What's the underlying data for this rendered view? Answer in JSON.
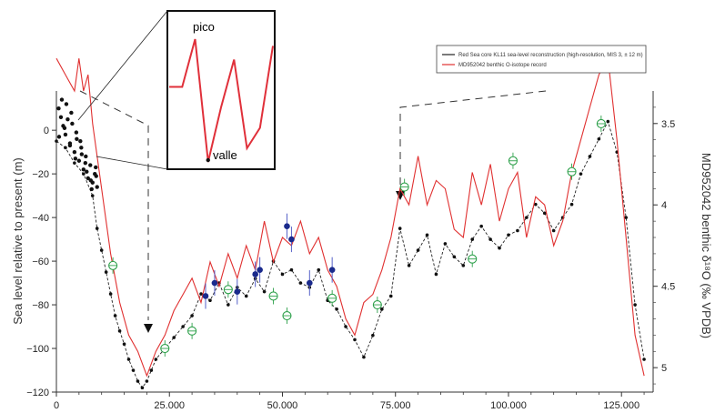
{
  "chart_data": {
    "type": "line",
    "xlabel": "",
    "ylabel_left": "Sea level relative to present (m)",
    "ylabel_right": "MD952042 benthic δ¹⁸O (‰ VPDB)",
    "xlim": [
      0,
      132000
    ],
    "ylim_left": [
      -120,
      18
    ],
    "ylim_right": [
      3.3,
      5.15
    ],
    "x_ticks": [
      "0",
      "25.000",
      "50.000",
      "75.000",
      "100.000",
      "125.000"
    ],
    "x_tick_values": [
      0,
      25000,
      50000,
      75000,
      100000,
      125000
    ],
    "y_ticks_left": [
      "0",
      "−20",
      "−40",
      "−60",
      "−80",
      "−100",
      "−120"
    ],
    "y_tick_values_left": [
      0,
      -20,
      -40,
      -60,
      -80,
      -100,
      -120
    ],
    "y_ticks_right": [
      "3.5",
      "4",
      "4.5",
      "5"
    ],
    "y_tick_values_right": [
      3.5,
      4,
      4.5,
      5
    ],
    "legend_placement": "top-right",
    "series": [
      {
        "name": "Red Sea core KL11 sea-level reconstruction (high-resolution, MIS 3, ± 12 m)",
        "color": "#222222",
        "axis": "left",
        "x": [
          0,
          2000,
          4000,
          6000,
          8000,
          9000,
          10000,
          11000,
          12000,
          13000,
          14000,
          15000,
          16000,
          17000,
          18000,
          19000,
          20000,
          21000,
          22000,
          24000,
          26000,
          28000,
          30000,
          32000,
          34000,
          36000,
          38000,
          40000,
          42000,
          44000,
          46000,
          48000,
          50000,
          52000,
          54000,
          56000,
          58000,
          60000,
          62000,
          64000,
          66000,
          68000,
          70000,
          72000,
          74000,
          76000,
          78000,
          80000,
          82000,
          84000,
          86000,
          88000,
          90000,
          92000,
          94000,
          96000,
          98000,
          100000,
          102000,
          104000,
          106000,
          108000,
          110000,
          112000,
          114000,
          116000,
          118000,
          120000,
          122000,
          124000,
          126000,
          128000,
          130000
        ],
        "y": [
          -5,
          -8,
          -15,
          -20,
          -30,
          -45,
          -55,
          -65,
          -75,
          -85,
          -92,
          -98,
          -105,
          -110,
          -115,
          -118,
          -115,
          -110,
          -105,
          -100,
          -95,
          -90,
          -85,
          -75,
          -78,
          -70,
          -80,
          -72,
          -76,
          -68,
          -74,
          -60,
          -66,
          -64,
          -70,
          -72,
          -64,
          -78,
          -82,
          -90,
          -96,
          -104,
          -94,
          -82,
          -76,
          -45,
          -62,
          -55,
          -48,
          -66,
          -52,
          -58,
          -62,
          -50,
          -44,
          -50,
          -54,
          -48,
          -46,
          -40,
          -34,
          -38,
          -46,
          -40,
          -34,
          -20,
          -12,
          -4,
          4,
          -10,
          -40,
          -80,
          -105
        ]
      },
      {
        "name": "MD952042 benthic O-isotope record",
        "color": "#e03030",
        "axis": "right",
        "x": [
          0,
          2000,
          4000,
          5000,
          6000,
          7000,
          8000,
          10000,
          12000,
          14000,
          16000,
          18000,
          20000,
          22000,
          24000,
          26000,
          28000,
          30000,
          32000,
          34000,
          36000,
          38000,
          40000,
          42000,
          44000,
          46000,
          48000,
          50000,
          52000,
          54000,
          56000,
          58000,
          60000,
          62000,
          64000,
          66000,
          68000,
          70000,
          72000,
          74000,
          76000,
          78000,
          80000,
          82000,
          84000,
          86000,
          88000,
          90000,
          92000,
          94000,
          96000,
          98000,
          100000,
          102000,
          104000,
          106000,
          108000,
          110000,
          112000,
          114000,
          116000,
          118000,
          120000,
          122000,
          124000,
          126000,
          128000,
          130000
        ],
        "y": [
          3.1,
          3.2,
          3.3,
          3.1,
          3.3,
          3.2,
          3.5,
          3.9,
          4.3,
          4.6,
          4.8,
          4.9,
          5.05,
          4.9,
          4.8,
          4.65,
          4.55,
          4.45,
          4.6,
          4.35,
          4.5,
          4.3,
          4.45,
          4.25,
          4.4,
          4.1,
          4.35,
          4.2,
          4.25,
          4.1,
          4.3,
          4.2,
          4.4,
          4.5,
          4.7,
          4.8,
          4.6,
          4.55,
          4.4,
          4.2,
          3.9,
          4.0,
          3.7,
          4.0,
          3.85,
          3.9,
          4.15,
          4.2,
          3.8,
          4.0,
          3.75,
          4.1,
          3.9,
          3.8,
          4.2,
          3.95,
          4.0,
          4.25,
          4.1,
          3.8,
          3.6,
          3.4,
          3.2,
          3.1,
          3.6,
          4.2,
          4.8,
          5.05
        ]
      }
    ],
    "markers": {
      "black_dots": {
        "x": [
          500,
          1000,
          1500,
          2000,
          2500,
          3000,
          3500,
          4000,
          4500,
          5000,
          5500,
          6000,
          6500,
          7000,
          7500,
          8000,
          8500,
          9000,
          1200,
          2200,
          3300,
          4400,
          5600,
          6700,
          7800,
          8800,
          600,
          1800,
          3000,
          4200,
          5300,
          6400,
          7600,
          8700
        ],
        "y": [
          10,
          6,
          2,
          -2,
          5,
          -6,
          3,
          -10,
          -4,
          -14,
          -8,
          -18,
          -12,
          -22,
          -16,
          -24,
          -20,
          -26,
          14,
          12,
          8,
          -1,
          -11,
          -19,
          -27,
          -21,
          -3,
          1,
          -7,
          -13,
          -5,
          -15,
          -23,
          -17
        ]
      },
      "blue_dots": {
        "x": [
          33000,
          35000,
          40000,
          44000,
          45000,
          51000,
          52000,
          56000,
          61000
        ],
        "y": [
          -76,
          -70,
          -74,
          -66,
          -64,
          -44,
          -50,
          -70,
          -64
        ]
      },
      "green_circles": {
        "x": [
          12500,
          24000,
          30000,
          38000,
          48000,
          51000,
          61000,
          71000,
          77000,
          92000,
          101000,
          114000,
          120500
        ],
        "y": [
          -62,
          -100,
          -92,
          -73,
          -76,
          -85,
          -77,
          -80,
          -26,
          -59,
          -14,
          -19,
          3
        ]
      }
    },
    "inset": {
      "label_peak": "pico",
      "label_valley": "valle",
      "x": [
        0,
        1,
        2,
        3,
        4,
        5,
        6,
        7,
        8
      ],
      "y": [
        0.55,
        0.55,
        0.9,
        0.0,
        0.4,
        0.75,
        0.1,
        0.25,
        0.85
      ]
    }
  }
}
